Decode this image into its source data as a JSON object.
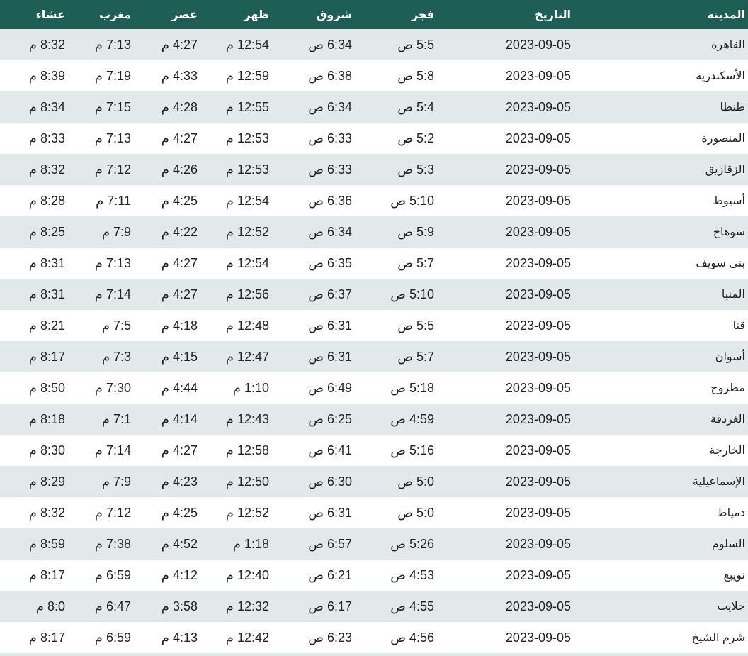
{
  "headers": [
    "المدينة",
    "التاريخ",
    "فجر",
    "شروق",
    "ظهر",
    "عصر",
    "مغرب",
    "عشاء"
  ],
  "header_color": "#1d5e55",
  "rows": [
    [
      "القاهرة",
      "2023-09-05",
      "5:5 ص",
      "6:34 ص",
      "12:54 م",
      "4:27 م",
      "7:13 م",
      "8:32 م"
    ],
    [
      "الأسكندرية",
      "2023-09-05",
      "5:8 ص",
      "6:38 ص",
      "12:59 م",
      "4:33 م",
      "7:19 م",
      "8:39 م"
    ],
    [
      "طنطا",
      "2023-09-05",
      "5:4 ص",
      "6:34 ص",
      "12:55 م",
      "4:28 م",
      "7:15 م",
      "8:34 م"
    ],
    [
      "المنصورة",
      "2023-09-05",
      "5:2 ص",
      "6:33 ص",
      "12:53 م",
      "4:27 م",
      "7:13 م",
      "8:33 م"
    ],
    [
      "الزقازيق",
      "2023-09-05",
      "5:3 ص",
      "6:33 ص",
      "12:53 م",
      "4:26 م",
      "7:12 م",
      "8:32 م"
    ],
    [
      "أسيوط",
      "2023-09-05",
      "5:10 ص",
      "6:36 ص",
      "12:54 م",
      "4:25 م",
      "7:11 م",
      "8:28 م"
    ],
    [
      "سوهاج",
      "2023-09-05",
      "5:9 ص",
      "6:34 ص",
      "12:52 م",
      "4:22 م",
      "7:9 م",
      "8:25 م"
    ],
    [
      "بنى سويف",
      "2023-09-05",
      "5:7 ص",
      "6:35 ص",
      "12:54 م",
      "4:27 م",
      "7:13 م",
      "8:31 م"
    ],
    [
      "المنيا",
      "2023-09-05",
      "5:10 ص",
      "6:37 ص",
      "12:56 م",
      "4:27 م",
      "7:14 م",
      "8:31 م"
    ],
    [
      "قنا",
      "2023-09-05",
      "5:5 ص",
      "6:31 ص",
      "12:48 م",
      "4:18 م",
      "7:5 م",
      "8:21 م"
    ],
    [
      "أسوان",
      "2023-09-05",
      "5:7 ص",
      "6:31 ص",
      "12:47 م",
      "4:15 م",
      "7:3 م",
      "8:17 م"
    ],
    [
      "مطروح",
      "2023-09-05",
      "5:18 ص",
      "6:49 ص",
      "1:10 م",
      "4:44 م",
      "7:30 م",
      "8:50 م"
    ],
    [
      "الغردقة",
      "2023-09-05",
      "4:59 ص",
      "6:25 ص",
      "12:43 م",
      "4:14 م",
      "7:1 م",
      "8:18 م"
    ],
    [
      "الخارجة",
      "2023-09-05",
      "5:16 ص",
      "6:41 ص",
      "12:58 م",
      "4:27 م",
      "7:14 م",
      "8:30 م"
    ],
    [
      "الإسماعيلية",
      "2023-09-05",
      "5:0 ص",
      "6:30 ص",
      "12:50 م",
      "4:23 م",
      "7:9 م",
      "8:29 م"
    ],
    [
      "دمياط",
      "2023-09-05",
      "5:0 ص",
      "6:31 ص",
      "12:52 م",
      "4:25 م",
      "7:12 م",
      "8:32 م"
    ],
    [
      "السلوم",
      "2023-09-05",
      "5:26 ص",
      "6:57 ص",
      "1:18 م",
      "4:52 م",
      "7:38 م",
      "8:59 م"
    ],
    [
      "نويبع",
      "2023-09-05",
      "4:53 ص",
      "6:21 ص",
      "12:40 م",
      "4:12 م",
      "6:59 م",
      "8:17 م"
    ],
    [
      "حلايب",
      "2023-09-05",
      "4:55 ص",
      "6:17 ص",
      "12:32 م",
      "3:58 م",
      "6:47 م",
      "8:0 م"
    ],
    [
      "شرم الشيخ",
      "2023-09-05",
      "4:56 ص",
      "6:23 ص",
      "12:42 م",
      "4:13 م",
      "6:59 م",
      "8:17 م"
    ]
  ]
}
